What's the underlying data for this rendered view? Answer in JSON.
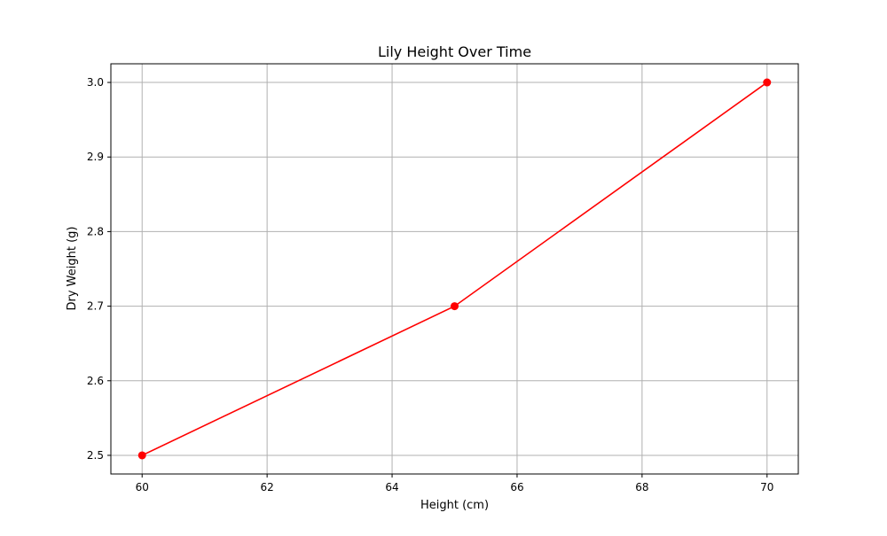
{
  "chart_data": {
    "type": "line",
    "title": "Lily Height Over Time",
    "xlabel": "Height (cm)",
    "ylabel": "Dry Weight (g)",
    "x": [
      60,
      65,
      70
    ],
    "series": [
      {
        "values": [
          2.5,
          2.7,
          3.0
        ],
        "color": "#ff0000",
        "marker": "circle"
      }
    ],
    "xlim": [
      59.5,
      70.5
    ],
    "ylim": [
      2.475,
      3.025
    ],
    "x_ticks": [
      60,
      62,
      64,
      66,
      68,
      70
    ],
    "x_tick_labels": [
      "60",
      "62",
      "64",
      "66",
      "68",
      "70"
    ],
    "y_ticks": [
      2.5,
      2.6,
      2.7,
      2.8,
      2.9,
      3.0
    ],
    "y_tick_labels": [
      "2.5",
      "2.6",
      "2.7",
      "2.8",
      "2.9",
      "3.0"
    ],
    "grid": true,
    "grid_color": "#b0b0b0"
  }
}
